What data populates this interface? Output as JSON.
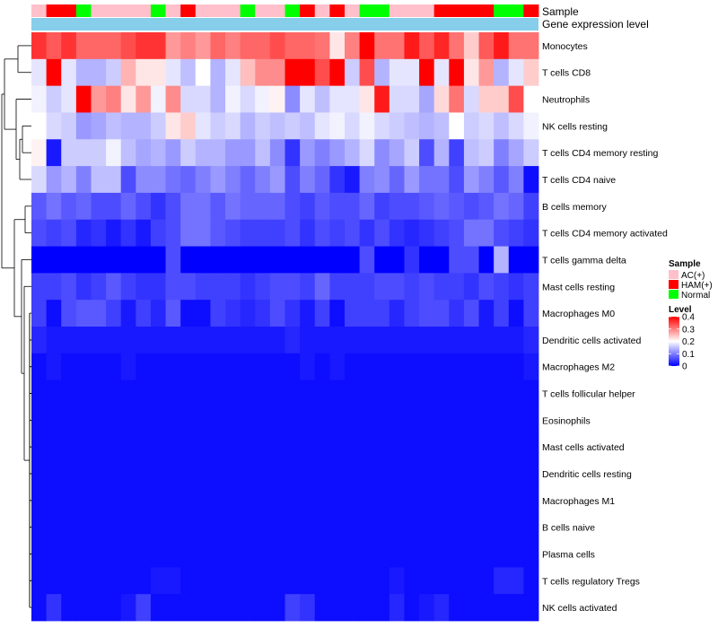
{
  "chart_data": {
    "type": "heatmap",
    "annotation_tracks": [
      "Sample",
      "Gene expression level"
    ],
    "legend": {
      "sample_title": "Sample",
      "sample_entries": [
        {
          "label": "AC(+)",
          "color": "#ffc0cb"
        },
        {
          "label": "HAM(+)",
          "color": "#ff0000"
        },
        {
          "label": "Normal",
          "color": "#00ff00"
        }
      ],
      "level_title": "Level",
      "level_ticks": [
        "0.4",
        "0.3",
        "0.2",
        "0.1",
        "0"
      ],
      "level_range": [
        0,
        0.4
      ]
    },
    "colorscale": {
      "low": "#0000ff",
      "mid": "#ffffff",
      "high": "#ff0000",
      "midpoint": 0.2
    },
    "gene_expression_color": "#87ceeb",
    "sample_groups": [
      "AC(+)",
      "HAM(+)",
      "HAM(+)",
      "Normal",
      "AC(+)",
      "AC(+)",
      "AC(+)",
      "AC(+)",
      "Normal",
      "AC(+)",
      "HAM(+)",
      "AC(+)",
      "AC(+)",
      "AC(+)",
      "Normal",
      "AC(+)",
      "AC(+)",
      "Normal",
      "HAM(+)",
      "AC(+)",
      "HAM(+)",
      "AC(+)",
      "Normal",
      "Normal",
      "AC(+)",
      "AC(+)",
      "AC(+)",
      "HAM(+)",
      "HAM(+)",
      "HAM(+)",
      "HAM(+)",
      "Normal",
      "Normal",
      "HAM(+)"
    ],
    "rows": [
      "Monocytes",
      "T cells CD8",
      "Neutrophils",
      "NK cells resting",
      "T cells CD4 memory resting",
      "T cells CD4 naive",
      "B cells memory",
      "T cells CD4 memory activated",
      "T cells gamma delta",
      "Mast cells resting",
      "Macrophages M0",
      "Dendritic cells activated",
      "Macrophages M2",
      "T cells follicular helper",
      "Eosinophils",
      "Mast cells activated",
      "Dendritic cells resting",
      "Macrophages M1",
      "B cells naive",
      "Plasma cells",
      "T cells regulatory  Tregs",
      "NK cells activated"
    ],
    "values": [
      [
        0.36,
        0.33,
        0.36,
        0.32,
        0.32,
        0.32,
        0.34,
        0.36,
        0.36,
        0.28,
        0.3,
        0.28,
        0.32,
        0.3,
        0.32,
        0.32,
        0.34,
        0.32,
        0.32,
        0.31,
        0.22,
        0.3,
        0.4,
        0.31,
        0.31,
        0.38,
        0.33,
        0.37,
        0.31,
        0.24,
        0.33,
        0.38,
        0.31,
        0.31
      ],
      [
        0.18,
        0.4,
        0.18,
        0.14,
        0.14,
        0.16,
        0.26,
        0.22,
        0.22,
        0.18,
        0.15,
        0.2,
        0.14,
        0.18,
        0.25,
        0.29,
        0.29,
        0.4,
        0.4,
        0.34,
        0.4,
        0.16,
        0.34,
        0.14,
        0.18,
        0.18,
        0.4,
        0.18,
        0.4,
        0.22,
        0.28,
        0.14,
        0.18,
        0.24
      ],
      [
        0.19,
        0.16,
        0.18,
        0.4,
        0.28,
        0.3,
        0.22,
        0.28,
        0.19,
        0.29,
        0.17,
        0.17,
        0.14,
        0.19,
        0.17,
        0.19,
        0.21,
        0.11,
        0.18,
        0.15,
        0.18,
        0.18,
        0.22,
        0.38,
        0.17,
        0.17,
        0.13,
        0.23,
        0.31,
        0.17,
        0.24,
        0.24,
        0.34,
        0.2
      ],
      [
        0.2,
        0.17,
        0.16,
        0.12,
        0.13,
        0.15,
        0.14,
        0.14,
        0.16,
        0.22,
        0.24,
        0.18,
        0.16,
        0.17,
        0.14,
        0.16,
        0.15,
        0.16,
        0.15,
        0.18,
        0.19,
        0.17,
        0.19,
        0.17,
        0.16,
        0.15,
        0.14,
        0.15,
        0.2,
        0.16,
        0.17,
        0.15,
        0.17,
        0.19
      ],
      [
        0.21,
        0.02,
        0.16,
        0.16,
        0.16,
        0.19,
        0.15,
        0.13,
        0.14,
        0.12,
        0.16,
        0.14,
        0.14,
        0.12,
        0.12,
        0.15,
        0.11,
        0.04,
        0.12,
        0.1,
        0.12,
        0.14,
        0.17,
        0.11,
        0.13,
        0.16,
        0.06,
        0.14,
        0.05,
        0.15,
        0.16,
        0.1,
        0.13,
        0.16
      ],
      [
        0.17,
        0.12,
        0.14,
        0.1,
        0.15,
        0.15,
        0.06,
        0.11,
        0.11,
        0.09,
        0.08,
        0.1,
        0.12,
        0.1,
        0.08,
        0.1,
        0.12,
        0.06,
        0.1,
        0.08,
        0.04,
        0.02,
        0.1,
        0.11,
        0.08,
        0.12,
        0.09,
        0.09,
        0.06,
        0.12,
        0.1,
        0.07,
        0.1,
        0.01
      ],
      [
        0.07,
        0.09,
        0.07,
        0.08,
        0.06,
        0.06,
        0.08,
        0.06,
        0.04,
        0.06,
        0.09,
        0.09,
        0.07,
        0.09,
        0.08,
        0.08,
        0.08,
        0.06,
        0.05,
        0.07,
        0.06,
        0.06,
        0.08,
        0.05,
        0.06,
        0.06,
        0.07,
        0.08,
        0.07,
        0.06,
        0.07,
        0.09,
        0.08,
        0.05
      ],
      [
        0.06,
        0.05,
        0.06,
        0.03,
        0.04,
        0.02,
        0.04,
        0.02,
        0.05,
        0.06,
        0.09,
        0.09,
        0.07,
        0.06,
        0.05,
        0.05,
        0.05,
        0.06,
        0.04,
        0.06,
        0.05,
        0.06,
        0.04,
        0.06,
        0.04,
        0.03,
        0.04,
        0.05,
        0.06,
        0.09,
        0.09,
        0.06,
        0.05,
        0.04
      ],
      [
        0.0,
        0.0,
        0.0,
        0.0,
        0.0,
        0.0,
        0.0,
        0.0,
        0.0,
        0.06,
        0.0,
        0.0,
        0.0,
        0.0,
        0.0,
        0.0,
        0.0,
        0.0,
        0.0,
        0.0,
        0.0,
        0.0,
        0.06,
        0.0,
        0.0,
        0.04,
        0.0,
        0.0,
        0.06,
        0.06,
        0.0,
        0.14,
        0.0,
        0.0
      ],
      [
        0.05,
        0.05,
        0.06,
        0.04,
        0.05,
        0.07,
        0.05,
        0.04,
        0.04,
        0.06,
        0.06,
        0.05,
        0.05,
        0.05,
        0.04,
        0.05,
        0.06,
        0.06,
        0.05,
        0.08,
        0.05,
        0.05,
        0.05,
        0.06,
        0.06,
        0.05,
        0.06,
        0.05,
        0.05,
        0.04,
        0.06,
        0.05,
        0.04,
        0.05
      ],
      [
        0.05,
        0.01,
        0.06,
        0.07,
        0.07,
        0.05,
        0.02,
        0.05,
        0.03,
        0.07,
        0.01,
        0.01,
        0.05,
        0.04,
        0.03,
        0.04,
        0.06,
        0.04,
        0.02,
        0.05,
        0.01,
        0.05,
        0.05,
        0.05,
        0.03,
        0.05,
        0.06,
        0.06,
        0.04,
        0.06,
        0.02,
        0.05,
        0.01,
        0.05
      ],
      [
        0.03,
        0.02,
        0.02,
        0.02,
        0.02,
        0.02,
        0.02,
        0.02,
        0.02,
        0.02,
        0.02,
        0.02,
        0.02,
        0.02,
        0.02,
        0.02,
        0.02,
        0.03,
        0.02,
        0.02,
        0.02,
        0.02,
        0.02,
        0.02,
        0.02,
        0.02,
        0.02,
        0.02,
        0.02,
        0.02,
        0.02,
        0.02,
        0.02,
        0.03
      ],
      [
        0.01,
        0.02,
        0.01,
        0.01,
        0.01,
        0.01,
        0.02,
        0.01,
        0.01,
        0.01,
        0.01,
        0.01,
        0.01,
        0.01,
        0.01,
        0.01,
        0.01,
        0.01,
        0.02,
        0.01,
        0.02,
        0.01,
        0.01,
        0.01,
        0.01,
        0.01,
        0.01,
        0.01,
        0.01,
        0.01,
        0.01,
        0.01,
        0.01,
        0.02
      ],
      [
        0.01,
        0.01,
        0.01,
        0.01,
        0.01,
        0.01,
        0.01,
        0.01,
        0.01,
        0.01,
        0.01,
        0.01,
        0.01,
        0.01,
        0.01,
        0.01,
        0.01,
        0.01,
        0.01,
        0.01,
        0.01,
        0.01,
        0.01,
        0.01,
        0.01,
        0.01,
        0.01,
        0.01,
        0.01,
        0.01,
        0.01,
        0.01,
        0.01,
        0.01
      ],
      [
        0.01,
        0.01,
        0.01,
        0.01,
        0.01,
        0.01,
        0.01,
        0.01,
        0.01,
        0.01,
        0.01,
        0.01,
        0.01,
        0.01,
        0.01,
        0.01,
        0.01,
        0.01,
        0.01,
        0.01,
        0.01,
        0.01,
        0.01,
        0.01,
        0.01,
        0.01,
        0.01,
        0.01,
        0.01,
        0.01,
        0.01,
        0.01,
        0.01,
        0.01
      ],
      [
        0.01,
        0.01,
        0.01,
        0.01,
        0.01,
        0.01,
        0.01,
        0.01,
        0.01,
        0.01,
        0.01,
        0.01,
        0.01,
        0.01,
        0.01,
        0.01,
        0.01,
        0.01,
        0.01,
        0.01,
        0.01,
        0.01,
        0.01,
        0.01,
        0.01,
        0.01,
        0.01,
        0.01,
        0.01,
        0.01,
        0.01,
        0.01,
        0.01,
        0.01
      ],
      [
        0.01,
        0.01,
        0.01,
        0.01,
        0.01,
        0.01,
        0.01,
        0.01,
        0.01,
        0.01,
        0.01,
        0.01,
        0.01,
        0.01,
        0.01,
        0.01,
        0.01,
        0.01,
        0.01,
        0.01,
        0.01,
        0.01,
        0.01,
        0.01,
        0.01,
        0.01,
        0.01,
        0.01,
        0.01,
        0.01,
        0.01,
        0.01,
        0.01,
        0.01
      ],
      [
        0.01,
        0.01,
        0.01,
        0.01,
        0.01,
        0.01,
        0.01,
        0.01,
        0.01,
        0.01,
        0.01,
        0.01,
        0.01,
        0.01,
        0.01,
        0.01,
        0.01,
        0.01,
        0.01,
        0.01,
        0.01,
        0.01,
        0.01,
        0.01,
        0.01,
        0.01,
        0.01,
        0.01,
        0.01,
        0.01,
        0.01,
        0.01,
        0.01,
        0.01
      ],
      [
        0.01,
        0.01,
        0.01,
        0.01,
        0.01,
        0.01,
        0.01,
        0.01,
        0.01,
        0.01,
        0.01,
        0.01,
        0.01,
        0.01,
        0.01,
        0.01,
        0.01,
        0.01,
        0.01,
        0.01,
        0.01,
        0.01,
        0.01,
        0.01,
        0.01,
        0.01,
        0.01,
        0.01,
        0.01,
        0.01,
        0.01,
        0.01,
        0.01,
        0.01
      ],
      [
        0.01,
        0.01,
        0.01,
        0.01,
        0.01,
        0.01,
        0.01,
        0.01,
        0.01,
        0.01,
        0.01,
        0.01,
        0.01,
        0.01,
        0.01,
        0.01,
        0.01,
        0.01,
        0.01,
        0.01,
        0.01,
        0.01,
        0.01,
        0.01,
        0.01,
        0.01,
        0.01,
        0.01,
        0.01,
        0.01,
        0.01,
        0.01,
        0.01,
        0.01
      ],
      [
        0.01,
        0.01,
        0.01,
        0.01,
        0.01,
        0.01,
        0.01,
        0.01,
        0.02,
        0.02,
        0.01,
        0.01,
        0.01,
        0.01,
        0.01,
        0.01,
        0.01,
        0.01,
        0.01,
        0.01,
        0.01,
        0.01,
        0.01,
        0.01,
        0.02,
        0.01,
        0.01,
        0.01,
        0.01,
        0.01,
        0.01,
        0.03,
        0.03,
        0.01
      ],
      [
        0.01,
        0.04,
        0.01,
        0.01,
        0.01,
        0.01,
        0.02,
        0.05,
        0.01,
        0.01,
        0.01,
        0.01,
        0.01,
        0.01,
        0.01,
        0.01,
        0.01,
        0.05,
        0.04,
        0.01,
        0.01,
        0.01,
        0.01,
        0.01,
        0.03,
        0.01,
        0.02,
        0.03,
        0.01,
        0.01,
        0.01,
        0.01,
        0.01,
        0.01
      ]
    ]
  }
}
